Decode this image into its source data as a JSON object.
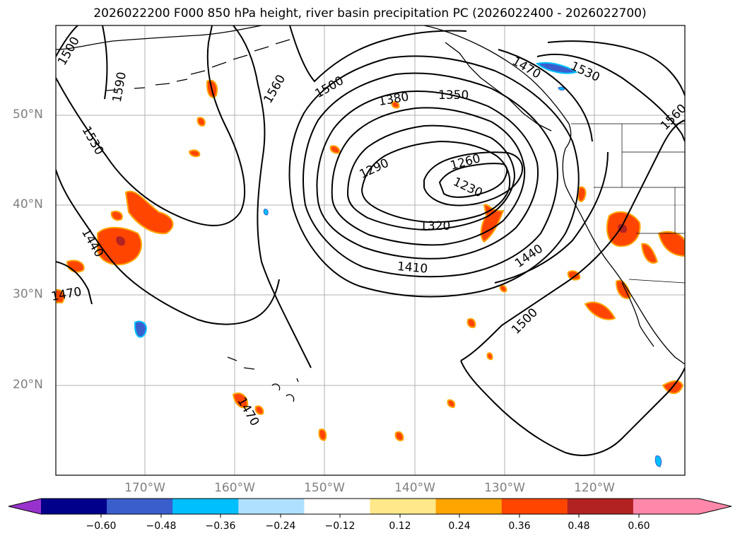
{
  "title": "2026022200 F000 850 hPa height, river basin precipitation PC (2026022400 - 2026022700)",
  "map": {
    "lat_labels": [
      "50°N",
      "40°N",
      "30°N",
      "20°N"
    ],
    "lon_labels": [
      "170°W",
      "160°W",
      "150°W",
      "140°W",
      "130°W",
      "120°W"
    ],
    "contour_labels": [
      "1500",
      "1590",
      "1530",
      "1560",
      "1500",
      "1380",
      "1350",
      "1470",
      "1530",
      "1560",
      "1290",
      "1260",
      "1230",
      "1320",
      "1440",
      "1410",
      "1440",
      "1470",
      "1500",
      "1470"
    ],
    "land_color": "#ffffff",
    "contour_color": "#000000"
  },
  "colorbar": {
    "tick_labels": [
      "−0.60",
      "−0.48",
      "−0.36",
      "−0.24",
      "−0.12",
      "0.12",
      "0.24",
      "0.36",
      "0.48",
      "0.60"
    ],
    "colors": [
      "#9932cc",
      "#00008b",
      "#3a5fcd",
      "#00bfff",
      "#b0e0ff",
      "#ffffff",
      "#ffe88a",
      "#ffa500",
      "#ff4500",
      "#b22222",
      "#ff88aa",
      "#ff88aa"
    ]
  }
}
